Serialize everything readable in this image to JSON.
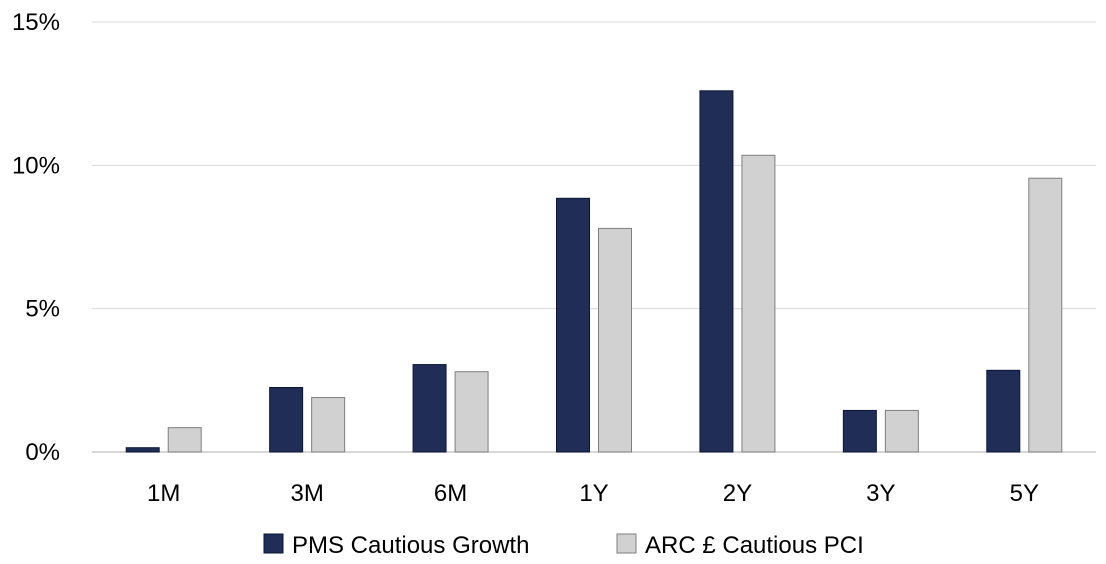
{
  "chart_data": {
    "type": "bar",
    "categories": [
      "1M",
      "3M",
      "6M",
      "1Y",
      "2Y",
      "3Y",
      "5Y"
    ],
    "series": [
      {
        "name": "PMS Cautious Growth",
        "values": [
          0.15,
          2.25,
          3.05,
          8.85,
          12.6,
          1.45,
          2.85
        ],
        "color": "#1f2d57"
      },
      {
        "name": "ARC £ Cautious PCI",
        "values": [
          0.85,
          1.9,
          2.8,
          7.8,
          10.35,
          1.45,
          9.55
        ],
        "color": "#d0d1d0"
      }
    ],
    "y_ticks": [
      {
        "value": 0,
        "label": "0%"
      },
      {
        "value": 5,
        "label": "5%"
      },
      {
        "value": 10,
        "label": "10%"
      },
      {
        "value": 15,
        "label": "15%"
      }
    ],
    "ylim": [
      0,
      15
    ],
    "grid": true,
    "legend_position": "bottom",
    "title": "",
    "xlabel": "",
    "ylabel": ""
  }
}
